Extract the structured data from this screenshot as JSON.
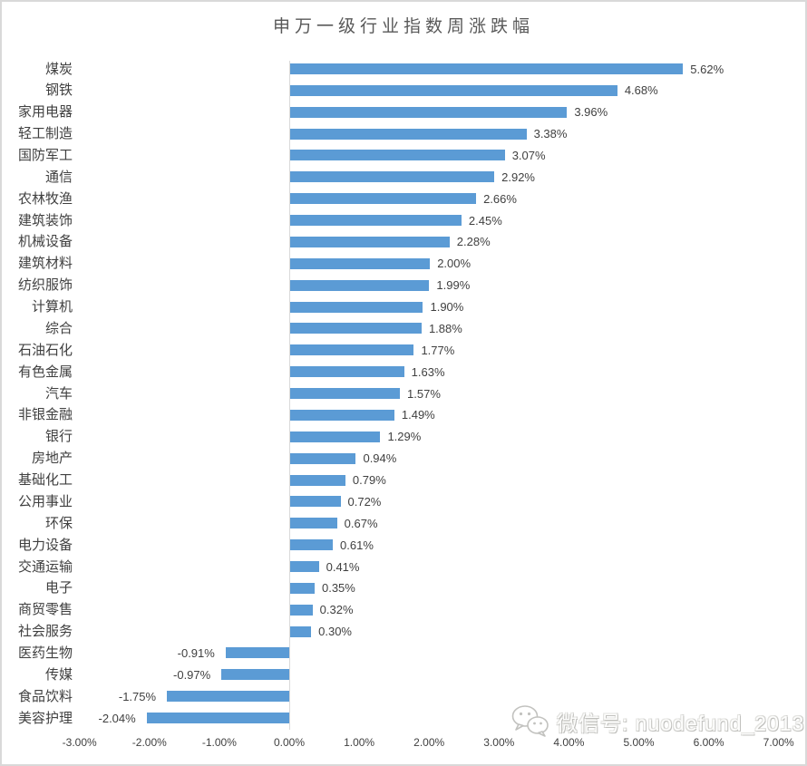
{
  "title": "申万一级行业指数周涨跌幅",
  "watermark": {
    "label": "微信号: nuodefund_2013",
    "icon": "wechat-icon"
  },
  "chart_data": {
    "type": "bar",
    "orientation": "horizontal",
    "title": "申万一级行业指数周涨跌幅",
    "categories": [
      "煤炭",
      "钢铁",
      "家用电器",
      "轻工制造",
      "国防军工",
      "通信",
      "农林牧渔",
      "建筑装饰",
      "机械设备",
      "建筑材料",
      "纺织服饰",
      "计算机",
      "综合",
      "石油石化",
      "有色金属",
      "汽车",
      "非银金融",
      "银行",
      "房地产",
      "基础化工",
      "公用事业",
      "环保",
      "电力设备",
      "交通运输",
      "电子",
      "商贸零售",
      "社会服务",
      "医药生物",
      "传媒",
      "食品饮料",
      "美容护理"
    ],
    "values": [
      5.62,
      4.68,
      3.96,
      3.38,
      3.07,
      2.92,
      2.66,
      2.45,
      2.28,
      2.0,
      1.99,
      1.9,
      1.88,
      1.77,
      1.63,
      1.57,
      1.49,
      1.29,
      0.94,
      0.79,
      0.72,
      0.67,
      0.61,
      0.41,
      0.35,
      0.32,
      0.3,
      -0.91,
      -0.97,
      -1.75,
      -2.04
    ],
    "value_labels": [
      "5.62%",
      "4.68%",
      "3.96%",
      "3.38%",
      "3.07%",
      "2.92%",
      "2.66%",
      "2.45%",
      "2.28%",
      "2.00%",
      "1.99%",
      "1.90%",
      "1.88%",
      "1.77%",
      "1.63%",
      "1.57%",
      "1.49%",
      "1.29%",
      "0.94%",
      "0.79%",
      "0.72%",
      "0.67%",
      "0.61%",
      "0.41%",
      "0.35%",
      "0.32%",
      "0.30%",
      "-0.91%",
      "-0.97%",
      "-1.75%",
      "-2.04%"
    ],
    "x_ticks": [
      "-3.00%",
      "-2.00%",
      "-1.00%",
      "0.00%",
      "1.00%",
      "2.00%",
      "3.00%",
      "4.00%",
      "5.00%",
      "6.00%",
      "7.00%"
    ],
    "xlim": [
      -3,
      7
    ],
    "grid": false,
    "legend": "none",
    "bar_color": "#5B9BD5",
    "axis_line_color": "#D9D9D9",
    "text_color": "#404040",
    "title_color": "#595959"
  }
}
